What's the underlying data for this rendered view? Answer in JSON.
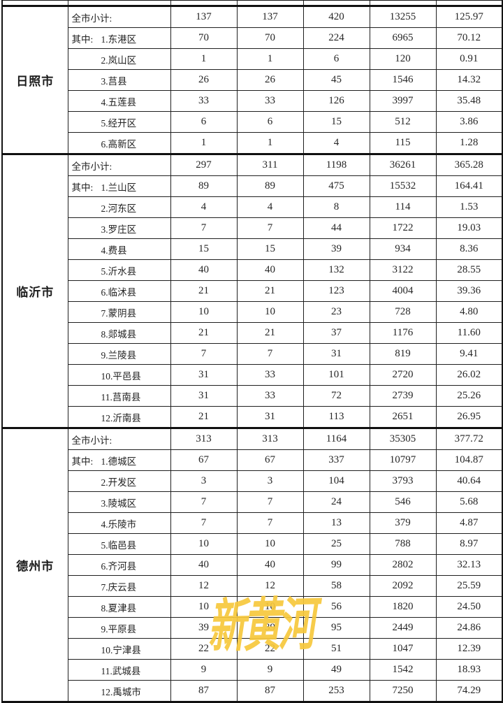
{
  "watermark": {
    "text": "新黄河",
    "color": "#F7C83C"
  },
  "table": {
    "sections": [
      {
        "city": "日照市",
        "rows": [
          {
            "prefix": "",
            "name": "全市小计:",
            "values": [
              "137",
              "137",
              "420",
              "13255",
              "125.97"
            ]
          },
          {
            "prefix": "其中:",
            "name": "1.东港区",
            "values": [
              "70",
              "70",
              "224",
              "6965",
              "70.12"
            ]
          },
          {
            "prefix": "",
            "name": "2.岚山区",
            "values": [
              "1",
              "1",
              "6",
              "120",
              "0.91"
            ]
          },
          {
            "prefix": "",
            "name": "3.莒县",
            "values": [
              "26",
              "26",
              "45",
              "1546",
              "14.32"
            ]
          },
          {
            "prefix": "",
            "name": "4.五莲县",
            "values": [
              "33",
              "33",
              "126",
              "3997",
              "35.48"
            ]
          },
          {
            "prefix": "",
            "name": "5.经开区",
            "values": [
              "6",
              "6",
              "15",
              "512",
              "3.86"
            ]
          },
          {
            "prefix": "",
            "name": "6.高新区",
            "values": [
              "1",
              "1",
              "4",
              "115",
              "1.28"
            ]
          }
        ]
      },
      {
        "city": "临沂市",
        "rows": [
          {
            "prefix": "",
            "name": "全市小计:",
            "values": [
              "297",
              "311",
              "1198",
              "36261",
              "365.28"
            ]
          },
          {
            "prefix": "其中:",
            "name": "1.兰山区",
            "values": [
              "89",
              "89",
              "475",
              "15532",
              "164.41"
            ]
          },
          {
            "prefix": "",
            "name": "2.河东区",
            "values": [
              "4",
              "4",
              "8",
              "114",
              "1.53"
            ]
          },
          {
            "prefix": "",
            "name": "3.罗庄区",
            "values": [
              "7",
              "7",
              "44",
              "1722",
              "19.03"
            ]
          },
          {
            "prefix": "",
            "name": "4.费县",
            "values": [
              "15",
              "15",
              "39",
              "934",
              "8.36"
            ]
          },
          {
            "prefix": "",
            "name": "5.沂水县",
            "values": [
              "40",
              "40",
              "132",
              "3122",
              "28.55"
            ]
          },
          {
            "prefix": "",
            "name": "6.临沭县",
            "values": [
              "21",
              "21",
              "123",
              "4004",
              "39.36"
            ]
          },
          {
            "prefix": "",
            "name": "7.蒙阴县",
            "values": [
              "10",
              "10",
              "23",
              "728",
              "4.80"
            ]
          },
          {
            "prefix": "",
            "name": "8.郯城县",
            "values": [
              "21",
              "21",
              "37",
              "1176",
              "11.60"
            ]
          },
          {
            "prefix": "",
            "name": "9.兰陵县",
            "values": [
              "7",
              "7",
              "31",
              "819",
              "9.41"
            ]
          },
          {
            "prefix": "",
            "name": "10.平邑县",
            "values": [
              "31",
              "33",
              "101",
              "2720",
              "26.02"
            ]
          },
          {
            "prefix": "",
            "name": "11.莒南县",
            "values": [
              "31",
              "33",
              "72",
              "2739",
              "25.26"
            ]
          },
          {
            "prefix": "",
            "name": "12.沂南县",
            "values": [
              "21",
              "31",
              "113",
              "2651",
              "26.95"
            ]
          }
        ]
      },
      {
        "city": "德州市",
        "rows": [
          {
            "prefix": "",
            "name": "全市小计:",
            "values": [
              "313",
              "313",
              "1164",
              "35305",
              "377.72"
            ]
          },
          {
            "prefix": "其中:",
            "name": "1.德城区",
            "values": [
              "67",
              "67",
              "337",
              "10797",
              "104.87"
            ]
          },
          {
            "prefix": "",
            "name": "2.开发区",
            "values": [
              "3",
              "3",
              "104",
              "3793",
              "40.64"
            ]
          },
          {
            "prefix": "",
            "name": "3.陵城区",
            "values": [
              "7",
              "7",
              "24",
              "546",
              "5.68"
            ]
          },
          {
            "prefix": "",
            "name": "4.乐陵市",
            "values": [
              "7",
              "7",
              "13",
              "379",
              "4.87"
            ]
          },
          {
            "prefix": "",
            "name": "5.临邑县",
            "values": [
              "10",
              "10",
              "25",
              "788",
              "8.97"
            ]
          },
          {
            "prefix": "",
            "name": "6.齐河县",
            "values": [
              "40",
              "40",
              "99",
              "2802",
              "32.13"
            ]
          },
          {
            "prefix": "",
            "name": "7.庆云县",
            "values": [
              "12",
              "12",
              "58",
              "2092",
              "25.59"
            ]
          },
          {
            "prefix": "",
            "name": "8.夏津县",
            "values": [
              "10",
              "10",
              "56",
              "1820",
              "24.50"
            ]
          },
          {
            "prefix": "",
            "name": "9.平原县",
            "values": [
              "39",
              "39",
              "95",
              "2449",
              "24.86"
            ]
          },
          {
            "prefix": "",
            "name": "10.宁津县",
            "values": [
              "22",
              "22",
              "51",
              "1047",
              "12.39"
            ]
          },
          {
            "prefix": "",
            "name": "11.武城县",
            "values": [
              "9",
              "9",
              "49",
              "1542",
              "18.93"
            ]
          },
          {
            "prefix": "",
            "name": "12.禹城市",
            "values": [
              "87",
              "87",
              "253",
              "7250",
              "74.29"
            ]
          }
        ]
      }
    ]
  }
}
